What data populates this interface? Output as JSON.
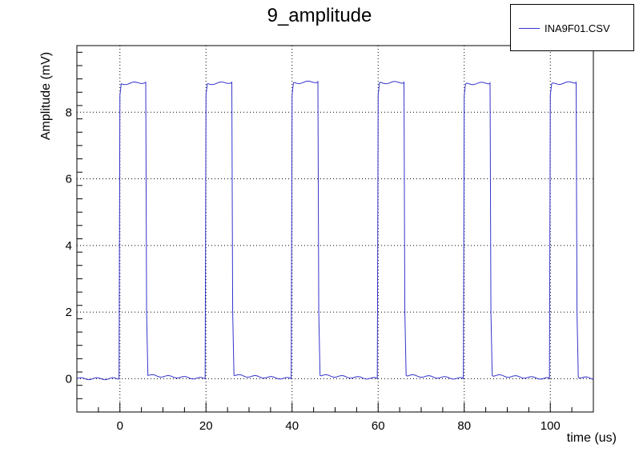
{
  "chart_data": {
    "type": "line",
    "title": "9_amplitude",
    "xlabel": "time (us)",
    "ylabel": "Amplitude (mV)",
    "xlim": [
      -10,
      110
    ],
    "ylim": [
      -1,
      10
    ],
    "xticks": [
      0,
      20,
      40,
      60,
      80,
      100
    ],
    "yticks": [
      0,
      2,
      4,
      6,
      8
    ],
    "grid": true,
    "legend_position": "top-right",
    "series": [
      {
        "name": "INA9F01.CSV",
        "color": "#3333cc",
        "x": [
          -10,
          -0.2,
          0,
          0.3,
          6.0,
          6.2,
          6.5,
          19.8,
          20,
          20.3,
          26.0,
          26.2,
          26.5,
          39.8,
          40,
          40.3,
          46.0,
          46.2,
          46.5,
          59.8,
          60,
          60.3,
          66.0,
          66.2,
          66.5,
          79.8,
          80,
          80.3,
          86.0,
          86.2,
          86.5,
          99.8,
          100,
          100.3,
          106.0,
          106.2,
          106.5,
          110
        ],
        "y": [
          0,
          0,
          8.5,
          8.85,
          8.9,
          2.0,
          0.1,
          0,
          8.5,
          8.85,
          8.9,
          2.0,
          0.1,
          0,
          8.5,
          8.88,
          8.92,
          2.0,
          0.1,
          0,
          8.5,
          8.88,
          8.9,
          2.0,
          0.1,
          0,
          8.5,
          8.85,
          8.88,
          2.0,
          0.1,
          0,
          8.5,
          8.85,
          8.9,
          2.0,
          0.05,
          0
        ]
      }
    ]
  }
}
